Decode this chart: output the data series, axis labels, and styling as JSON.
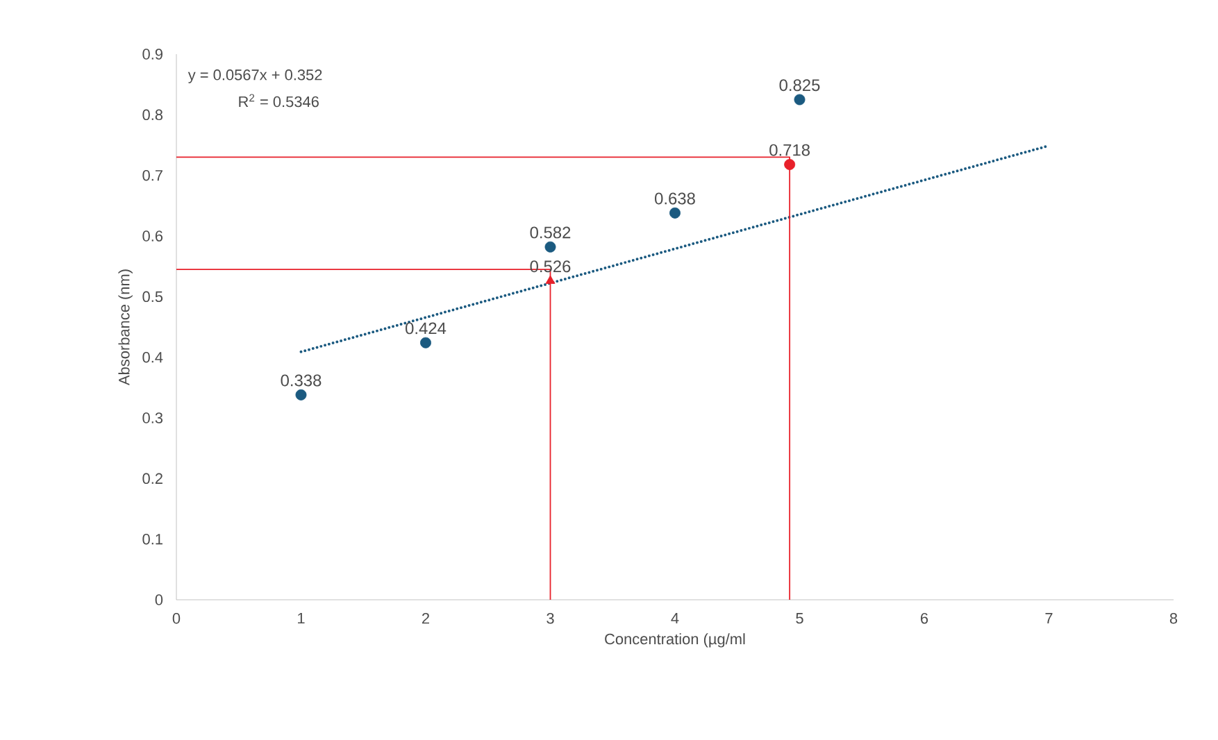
{
  "chart_data": {
    "type": "scatter",
    "xlabel": "Concentration (µg/ml",
    "ylabel": "Absorbance (nm)",
    "xlim": [
      0,
      8
    ],
    "xticks": [
      0,
      1,
      2,
      3,
      4,
      5,
      6,
      7,
      8
    ],
    "ylim": [
      0,
      0.9
    ],
    "yticks": [
      0,
      0.1,
      0.2,
      0.3,
      0.4,
      0.5,
      0.6,
      0.7,
      0.8,
      0.9
    ],
    "grid": false,
    "annotations": [
      "y = 0.0567x + 0.352",
      "R$^{2}$ = 0.5346"
    ],
    "series": [
      {
        "color": "#1b5a80",
        "marker": "circle",
        "x": [
          1,
          2,
          3,
          4,
          5
        ],
        "values": [
          0.338,
          0.424,
          0.582,
          0.638,
          0.825
        ],
        "value_labels": [
          "0.338",
          "0.424",
          "0.582",
          "0.638",
          "0.825"
        ]
      },
      {
        "type": "line",
        "color": "#1b5a80",
        "line_style": "dotted",
        "marker": "none",
        "x": [
          1,
          7
        ],
        "values": [
          0.409,
          0.749
        ]
      },
      {
        "type": "line",
        "color": "#e8202a",
        "line_style": "solid",
        "marker": "none",
        "x": [
          0,
          3,
          3
        ],
        "values": [
          0.545,
          0.545,
          0
        ]
      },
      {
        "type": "line",
        "color": "#e8202a",
        "line_style": "solid",
        "marker": "none",
        "x": [
          0,
          4.92,
          4.92
        ],
        "values": [
          0.73,
          0.73,
          0
        ]
      },
      {
        "type": "scatter",
        "color": "#e8202a",
        "marker": "triangle",
        "x": [
          3
        ],
        "values": [
          0.526
        ],
        "value_labels": [
          "0.526"
        ]
      },
      {
        "color": "#e8202a",
        "marker": "circle",
        "x": [
          4.92
        ],
        "values": [
          0.718
        ],
        "value_labels": [
          "0.718"
        ]
      }
    ]
  }
}
